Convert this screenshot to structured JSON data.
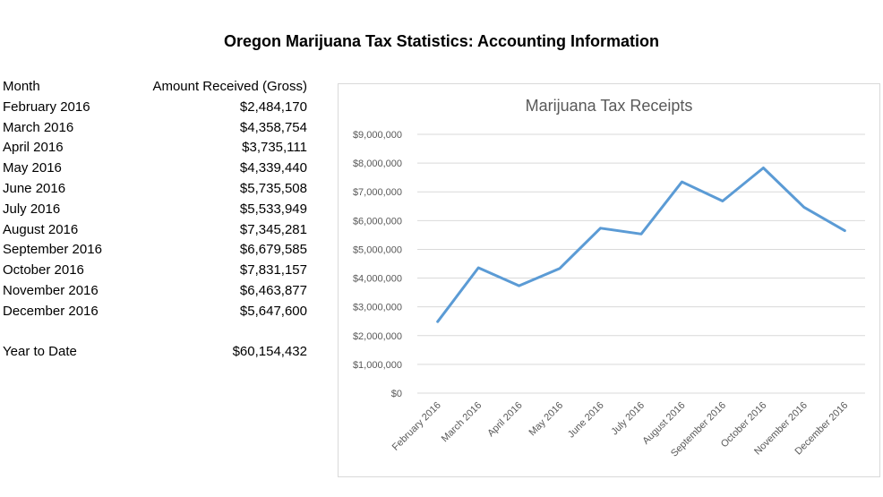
{
  "page": {
    "title": "Oregon Marijuana Tax Statistics: Accounting Information"
  },
  "table": {
    "col_month": "Month",
    "col_amount": "Amount Received (Gross)",
    "rows": [
      {
        "month": "February 2016",
        "amount": "$2,484,170"
      },
      {
        "month": "March 2016",
        "amount": "$4,358,754"
      },
      {
        "month": "April 2016",
        "amount": "$3,735,111"
      },
      {
        "month": "May 2016",
        "amount": "$4,339,440"
      },
      {
        "month": "June 2016",
        "amount": "$5,735,508"
      },
      {
        "month": "July 2016",
        "amount": "$5,533,949"
      },
      {
        "month": "August 2016",
        "amount": "$7,345,281"
      },
      {
        "month": "September 2016",
        "amount": "$6,679,585"
      },
      {
        "month": "October 2016",
        "amount": "$7,831,157"
      },
      {
        "month": "November 2016",
        "amount": "$6,463,877"
      },
      {
        "month": "December 2016",
        "amount": "$5,647,600"
      }
    ],
    "ytd_label": "Year to Date",
    "ytd_amount": "$60,154,432"
  },
  "chart_data": {
    "type": "line",
    "title": "Marijuana Tax Receipts",
    "xlabel": "",
    "ylabel": "",
    "categories": [
      "February 2016",
      "March 2016",
      "April 2016",
      "May 2016",
      "June 2016",
      "July 2016",
      "August 2016",
      "September 2016",
      "October 2016",
      "November 2016",
      "December 2016"
    ],
    "series": [
      {
        "values": [
          2484170,
          4358754,
          3735111,
          4339440,
          5735508,
          5533949,
          7345281,
          6679585,
          7831157,
          6463877,
          5647600
        ],
        "color": "#5b9bd5"
      }
    ],
    "ylim": [
      0,
      9000000
    ],
    "yticks": [
      0,
      1000000,
      2000000,
      3000000,
      4000000,
      5000000,
      6000000,
      7000000,
      8000000,
      9000000
    ],
    "ytick_labels": [
      "$0",
      "$1,000,000",
      "$2,000,000",
      "$3,000,000",
      "$4,000,000",
      "$5,000,000",
      "$6,000,000",
      "$7,000,000",
      "$8,000,000",
      "$9,000,000"
    ],
    "grid": true,
    "legend": "none"
  }
}
